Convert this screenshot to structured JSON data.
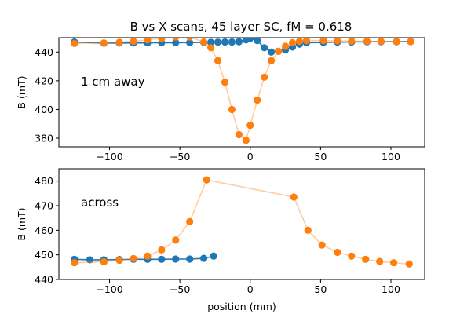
{
  "title": "B vs X scans, 45 layer SC, fM = 0.618",
  "colors": {
    "blue": "#1f77b4",
    "orange": "#ff7f0e"
  },
  "chart_data": [
    {
      "type": "line",
      "annotation": "1 cm away",
      "ylabel": "B (mT)",
      "xlabel": "",
      "xlim": [
        -136,
        124
      ],
      "ylim": [
        374,
        450
      ],
      "xticks": [
        -100,
        -50,
        0,
        50,
        100
      ],
      "yticks": [
        380,
        400,
        420,
        440
      ],
      "series": [
        {
          "color": "#1f77b4",
          "line_alpha": 1.0,
          "x": [
            -125,
            -104,
            -93,
            -83,
            -73,
            -63,
            -53,
            -43,
            -33,
            -28,
            -23,
            -18,
            -13,
            -8,
            -3,
            0,
            5,
            10,
            15,
            20,
            25,
            30,
            35,
            40,
            52,
            62,
            72,
            83,
            93,
            104,
            114
          ],
          "y": [
            447.0,
            446.2,
            446.3,
            446.3,
            446.4,
            446.5,
            446.5,
            446.6,
            446.7,
            446.8,
            446.9,
            447.0,
            447.0,
            447.2,
            448.5,
            449.5,
            448.0,
            443.0,
            440.0,
            440.5,
            441.5,
            443.5,
            445.5,
            446.5,
            446.7,
            446.9,
            447.0,
            447.1,
            447.2,
            447.2,
            447.3
          ]
        },
        {
          "color": "#ff7f0e",
          "line_alpha": 0.4,
          "x": [
            -125,
            -104,
            -93,
            -83,
            -73,
            -63,
            -53,
            -43,
            -33,
            -28,
            -23,
            -18,
            -13,
            -8,
            -3,
            0,
            5,
            10,
            15,
            20,
            25,
            30,
            35,
            40,
            52,
            62,
            72,
            83,
            93,
            104,
            114
          ],
          "y": [
            446.0,
            446.3,
            446.8,
            447.5,
            448.5,
            449.5,
            450.5,
            450.5,
            447.0,
            443.0,
            434.0,
            419.0,
            400.0,
            382.5,
            378.5,
            389.0,
            406.5,
            422.5,
            434.0,
            440.5,
            444.0,
            446.5,
            447.5,
            448.0,
            448.0,
            447.8,
            447.6,
            447.5,
            447.4,
            447.3,
            447.3
          ]
        }
      ]
    },
    {
      "type": "line",
      "annotation": "across",
      "ylabel": "B (mT)",
      "xlabel": "position (mm)",
      "xlim": [
        -136,
        124
      ],
      "ylim": [
        440,
        485
      ],
      "xticks": [
        -100,
        -50,
        0,
        50,
        100
      ],
      "yticks": [
        440,
        450,
        460,
        470,
        480
      ],
      "series": [
        {
          "color": "#1f77b4",
          "line_alpha": 1.0,
          "x": [
            -125,
            -114,
            -104,
            -93,
            -83,
            -73,
            -63,
            -53,
            -43,
            -33,
            -26
          ],
          "y": [
            448.2,
            448.0,
            448.0,
            448.1,
            448.2,
            448.2,
            448.2,
            448.3,
            448.3,
            448.6,
            449.5
          ]
        },
        {
          "color": "#ff7f0e",
          "line_alpha": 0.4,
          "x": [
            -125,
            -104,
            -93,
            -83,
            -73,
            -63,
            -53,
            -43,
            -31,
            31,
            41,
            51,
            62,
            72,
            82,
            92,
            102,
            113
          ],
          "y": [
            446.8,
            447.2,
            447.8,
            448.5,
            449.5,
            452.0,
            456.0,
            463.5,
            480.5,
            473.5,
            460.0,
            454.0,
            451.0,
            449.5,
            448.2,
            447.3,
            446.8,
            446.3
          ]
        }
      ]
    }
  ]
}
